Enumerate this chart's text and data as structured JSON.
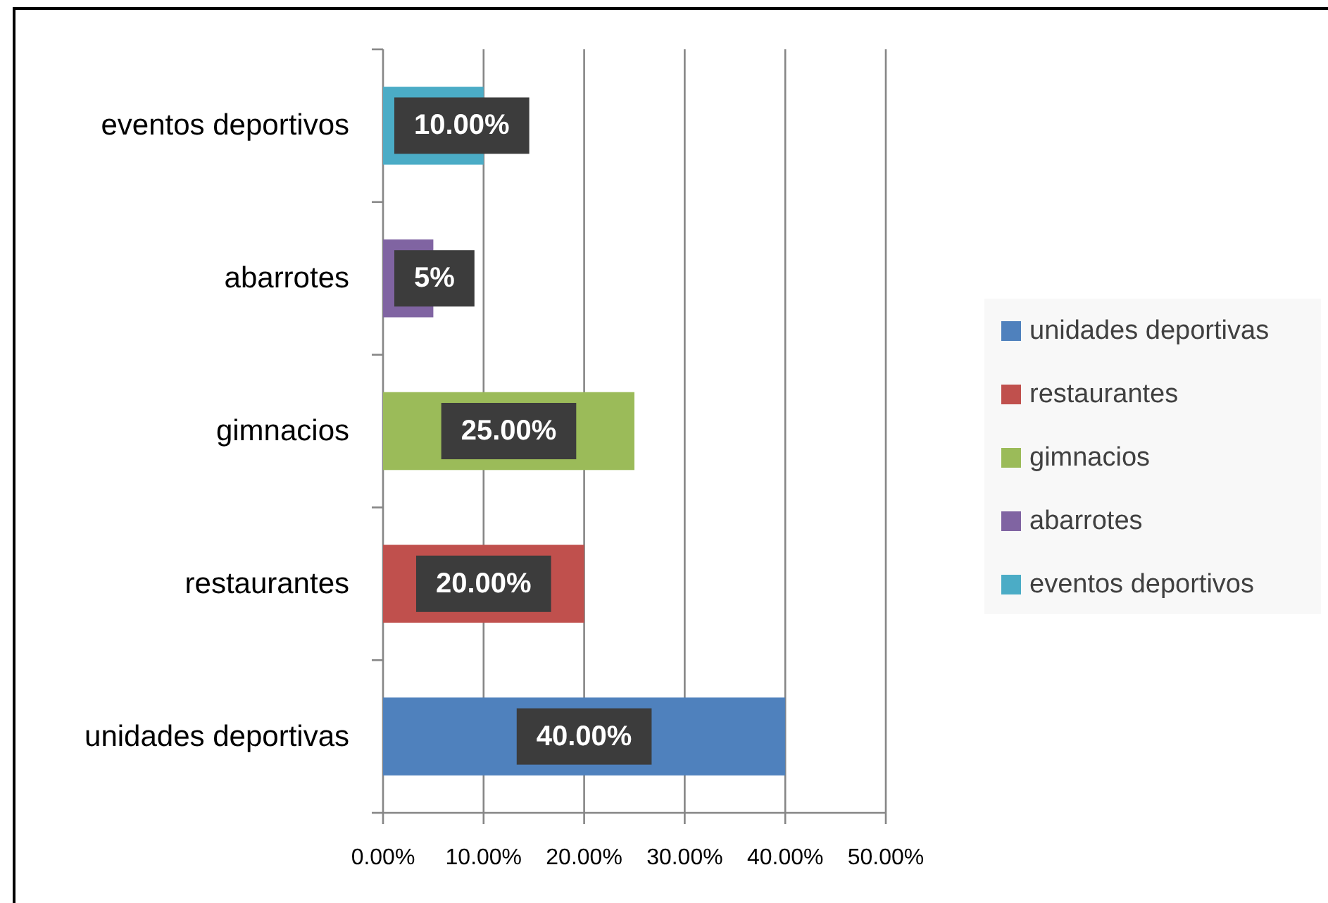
{
  "chart_data": {
    "type": "bar",
    "orientation": "horizontal",
    "stacked": true,
    "categories": [
      "eventos deportivos",
      "abarrotes",
      "gimnacios",
      "restaurantes",
      "unidades deportivas"
    ],
    "series": [
      {
        "name": "unidades deportivas",
        "color": "#4f81bd",
        "values": [
          null,
          null,
          null,
          null,
          40
        ],
        "value_labels": [
          null,
          null,
          null,
          null,
          "40.00%"
        ]
      },
      {
        "name": "restaurantes",
        "color": "#c0504d",
        "values": [
          null,
          null,
          null,
          20,
          null
        ],
        "value_labels": [
          null,
          null,
          null,
          "20.00%",
          null
        ]
      },
      {
        "name": "gimnacios",
        "color": "#9bbb59",
        "values": [
          null,
          null,
          25,
          null,
          null
        ],
        "value_labels": [
          null,
          null,
          "25.00%",
          null,
          null
        ]
      },
      {
        "name": "abarrotes",
        "color": "#8064a2",
        "values": [
          null,
          5,
          null,
          null,
          null
        ],
        "value_labels": [
          null,
          "5%",
          null,
          null,
          null
        ]
      },
      {
        "name": "eventos deportivos",
        "color": "#4bacc6",
        "values": [
          10,
          null,
          null,
          null,
          null
        ],
        "value_labels": [
          "10.00%",
          null,
          null,
          null,
          null
        ]
      }
    ],
    "xlim": [
      0,
      50
    ],
    "xticks": [
      {
        "value": 0,
        "label": "0.00%"
      },
      {
        "value": 10,
        "label": "10.00%"
      },
      {
        "value": 20,
        "label": "20.00%"
      },
      {
        "value": 30,
        "label": "30.00%"
      },
      {
        "value": 40,
        "label": "40.00%"
      },
      {
        "value": 50,
        "label": "50.00%"
      }
    ],
    "grid": "x",
    "legend": "right"
  }
}
